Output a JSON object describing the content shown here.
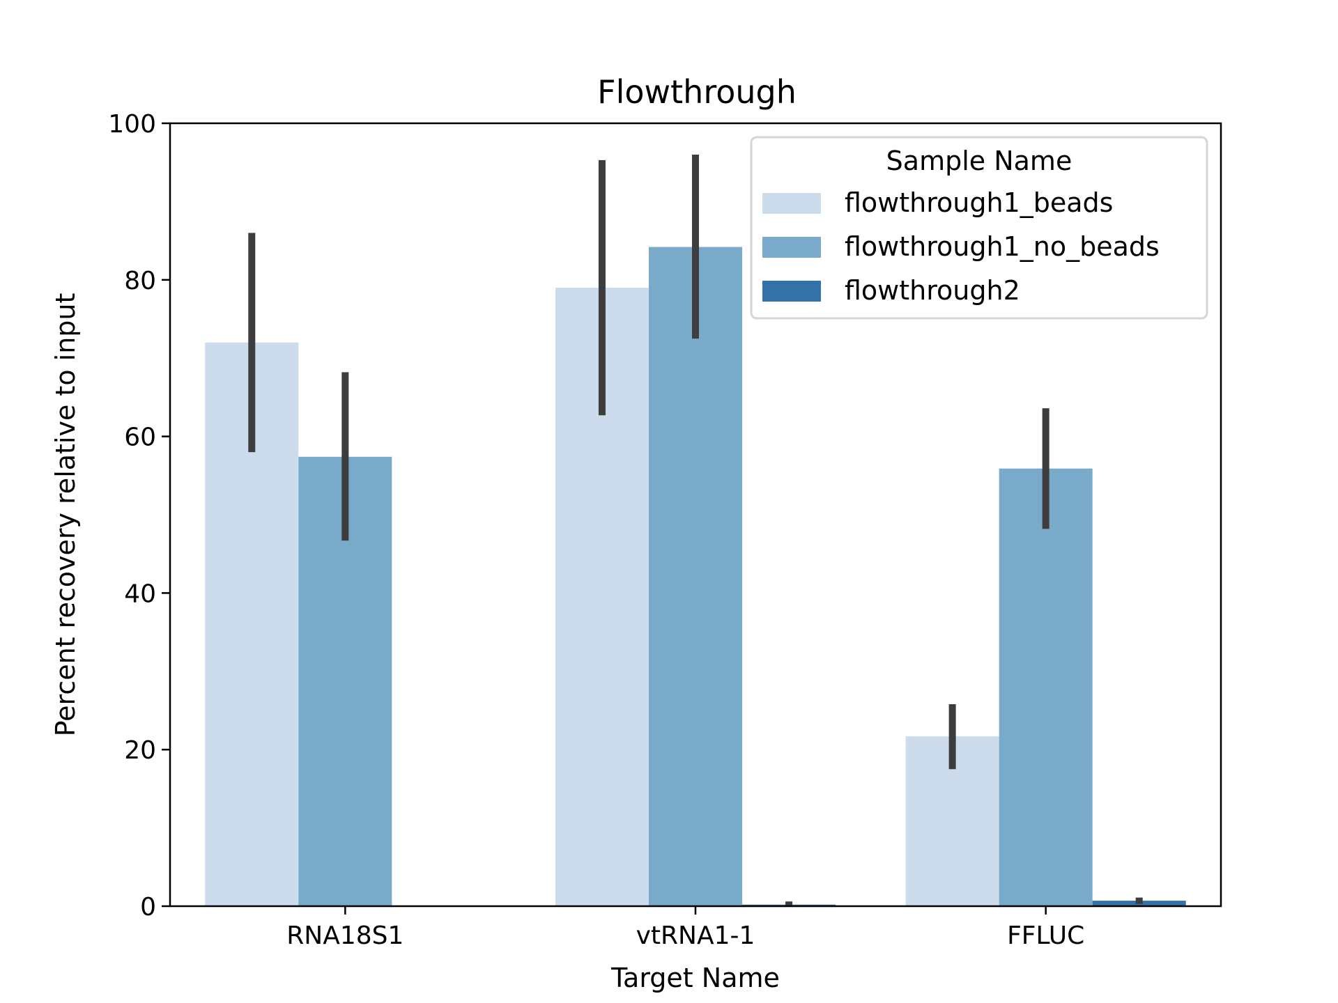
{
  "chart_data": {
    "type": "bar",
    "title": "Flowthrough",
    "xlabel": "Target Name",
    "ylabel": "Percent recovery relative to input",
    "categories": [
      "RNA18S1",
      "vtRNA1-1",
      "FFLUC"
    ],
    "ylim": [
      0,
      100
    ],
    "yticks": [
      0,
      20,
      40,
      60,
      80,
      100
    ],
    "grid": false,
    "legend": {
      "title": "Sample Name",
      "placement": "top-right"
    },
    "series": [
      {
        "name": "flowthrough1_beads",
        "color": "#cddced",
        "values": [
          72.0,
          79.0,
          21.7
        ],
        "error_low": [
          58.0,
          62.7,
          17.5
        ],
        "error_high": [
          86.0,
          95.3,
          25.8
        ]
      },
      {
        "name": "flowthrough1_no_beads",
        "color": "#7aaac9",
        "values": [
          57.4,
          84.2,
          55.9
        ],
        "error_low": [
          46.7,
          72.5,
          48.2
        ],
        "error_high": [
          68.2,
          96.0,
          63.6
        ]
      },
      {
        "name": "flowthrough2",
        "color": "#3372a8",
        "values": [
          null,
          0.2,
          0.7
        ],
        "error_low": [
          null,
          0.0,
          0.3
        ],
        "error_high": [
          null,
          0.6,
          1.1
        ]
      }
    ],
    "error_bar_color": "#3d3d3d"
  }
}
